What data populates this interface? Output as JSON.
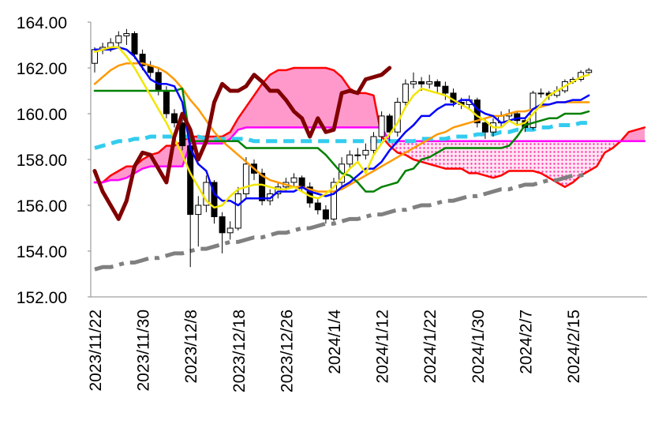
{
  "chart_data": {
    "type": "candlestick",
    "categories": [
      "2023/11/22",
      null,
      null,
      null,
      null,
      null,
      "2023/11/30",
      null,
      null,
      null,
      null,
      null,
      "2023/12/8",
      null,
      null,
      null,
      null,
      null,
      "2023/12/18",
      null,
      null,
      null,
      null,
      null,
      "2023/12/26",
      null,
      null,
      null,
      null,
      null,
      "2024/1/4",
      null,
      null,
      null,
      null,
      null,
      "2024/1/12",
      null,
      null,
      null,
      null,
      null,
      "2024/1/22",
      null,
      null,
      null,
      null,
      null,
      "2024/1/30",
      null,
      null,
      null,
      null,
      null,
      "2024/2/7",
      null,
      null,
      null,
      null,
      null,
      "2024/2/15",
      null,
      null,
      null,
      null,
      null,
      null,
      null,
      null,
      null
    ],
    "ylim": [
      152,
      164
    ],
    "yticks": [
      {
        "value": 152,
        "label": "152.00"
      },
      {
        "value": 154,
        "label": "154.00"
      },
      {
        "value": 156,
        "label": "156.00"
      },
      {
        "value": 158,
        "label": "158.00"
      },
      {
        "value": 160,
        "label": "160.00"
      },
      {
        "value": 162,
        "label": "162.00"
      },
      {
        "value": 164,
        "label": "164.00"
      }
    ],
    "cloud_color": "#ff99cc",
    "candles": {
      "open": [
        162.2,
        162.8,
        162.9,
        163.1,
        163.4,
        163.5,
        162.6,
        162.1,
        161.8,
        161.0,
        160.0,
        159.6,
        158.6,
        155.6,
        156.0,
        157.0,
        155.5,
        154.8,
        155.0,
        156.5,
        157.8,
        157.4,
        156.2,
        156.5,
        156.8,
        157.0,
        157.2,
        156.8,
        156.1,
        155.8,
        155.4,
        157.0,
        157.8,
        158.2,
        158.2,
        158.4,
        159.0,
        159.9,
        159.2,
        160.5,
        161.3,
        161.4,
        161.3,
        161.4,
        161.2,
        160.9,
        160.5,
        160.4,
        160.6,
        159.6,
        159.2,
        159.6,
        159.9,
        160.0,
        159.7,
        159.4,
        160.9,
        160.9,
        160.8,
        161.0,
        161.4,
        161.5,
        161.8,
        null,
        null,
        null,
        null,
        null,
        null,
        null
      ],
      "high": [
        162.9,
        163.1,
        163.3,
        163.6,
        163.7,
        163.6,
        162.8,
        162.3,
        162.0,
        161.2,
        160.2,
        159.8,
        158.8,
        156.4,
        157.3,
        157.1,
        155.7,
        155.3,
        156.8,
        158.1,
        158.0,
        157.6,
        156.7,
        157.0,
        157.2,
        157.4,
        157.3,
        157.0,
        156.3,
        156.0,
        157.2,
        158.1,
        158.4,
        158.5,
        158.7,
        159.2,
        160.1,
        160.0,
        160.7,
        161.5,
        161.8,
        161.6,
        161.7,
        161.5,
        161.4,
        161.1,
        160.7,
        160.8,
        160.7,
        159.8,
        159.8,
        160.1,
        160.2,
        160.1,
        159.8,
        161.0,
        161.1,
        161.0,
        161.2,
        161.5,
        161.6,
        161.9,
        162.0,
        null,
        null,
        null,
        null,
        null,
        null,
        null
      ],
      "low": [
        161.8,
        162.6,
        162.7,
        162.9,
        163.0,
        162.4,
        161.9,
        161.6,
        160.8,
        159.8,
        159.4,
        158.4,
        153.3,
        154.2,
        155.7,
        155.2,
        153.9,
        154.5,
        154.9,
        156.3,
        157.1,
        156.0,
        156.0,
        156.3,
        156.6,
        156.8,
        156.6,
        155.9,
        155.6,
        155.2,
        155.3,
        156.8,
        157.6,
        157.9,
        158.0,
        158.2,
        158.8,
        158.8,
        159.0,
        160.3,
        161.1,
        161.0,
        161.1,
        160.9,
        160.6,
        160.3,
        160.2,
        160.2,
        159.4,
        158.9,
        159.0,
        159.4,
        159.7,
        159.5,
        159.2,
        159.3,
        160.7,
        160.6,
        160.7,
        160.9,
        161.3,
        161.4,
        161.7,
        null,
        null,
        null,
        null,
        null,
        null,
        null
      ],
      "close": [
        162.8,
        162.9,
        163.1,
        163.4,
        163.5,
        162.6,
        162.1,
        161.8,
        161.0,
        160.0,
        159.6,
        158.6,
        155.6,
        156.0,
        157.0,
        155.5,
        154.8,
        155.0,
        156.5,
        157.8,
        157.4,
        156.2,
        156.5,
        156.8,
        157.0,
        157.2,
        156.8,
        156.1,
        155.8,
        155.4,
        157.0,
        157.8,
        158.2,
        158.2,
        158.4,
        159.0,
        159.9,
        159.2,
        160.5,
        161.3,
        161.4,
        161.3,
        161.4,
        161.2,
        160.9,
        160.5,
        160.4,
        160.6,
        159.6,
        159.2,
        159.6,
        159.9,
        160.0,
        159.7,
        159.4,
        160.9,
        160.9,
        160.8,
        161.0,
        161.4,
        161.5,
        161.8,
        161.9,
        null,
        null,
        null,
        null,
        null,
        null,
        null
      ]
    },
    "series": [
      {
        "color": "#ff0000",
        "width": 2.5,
        "values": [
          157.0,
          157.0,
          157.3,
          157.5,
          157.7,
          157.7,
          158.0,
          158.2,
          158.3,
          158.6,
          158.6,
          158.8,
          159.0,
          159.0,
          159.0,
          159.0,
          159.0,
          159.2,
          159.8,
          160.3,
          160.8,
          161.3,
          161.7,
          161.9,
          161.9,
          162.0,
          162.0,
          162.0,
          162.0,
          162.0,
          161.9,
          161.6,
          161.1,
          160.9,
          160.9,
          160.8,
          159.0,
          158.6,
          158.3,
          158.2,
          158.0,
          157.9,
          157.8,
          157.7,
          157.6,
          157.6,
          157.6,
          157.4,
          157.4,
          157.3,
          157.2,
          157.3,
          157.5,
          157.5,
          157.5,
          157.5,
          157.4,
          157.2,
          157.0,
          156.8,
          157.0,
          157.3,
          157.5,
          157.7,
          158.3,
          158.5,
          158.8,
          159.2,
          159.3,
          159.4
        ]
      },
      {
        "color": "#ff00ff",
        "width": 2.5,
        "values": [
          157.0,
          157.0,
          157.1,
          157.1,
          157.2,
          157.4,
          157.6,
          157.7,
          157.7,
          157.7,
          157.7,
          157.7,
          158.7,
          158.7,
          158.7,
          158.7,
          158.7,
          158.9,
          159.3,
          159.4,
          159.4,
          159.4,
          159.4,
          159.4,
          159.4,
          159.4,
          159.4,
          159.4,
          159.4,
          159.4,
          159.4,
          159.4,
          159.4,
          159.4,
          159.4,
          159.4,
          159.4,
          158.8,
          158.8,
          158.8,
          158.8,
          158.8,
          158.8,
          158.8,
          158.8,
          158.8,
          158.8,
          158.8,
          158.8,
          158.8,
          158.8,
          158.8,
          158.8,
          158.8,
          158.8,
          158.8,
          158.8,
          158.8,
          158.8,
          158.8,
          158.8,
          158.8,
          158.8,
          158.8,
          158.8,
          158.8,
          158.8,
          158.8,
          158.8,
          158.8
        ]
      },
      {
        "color": "#808080",
        "width": 5,
        "dash": "24 8 6 8",
        "values": [
          153.2,
          153.3,
          153.3,
          153.4,
          153.5,
          153.5,
          153.6,
          153.7,
          153.7,
          153.8,
          153.9,
          153.9,
          154.0,
          154.1,
          154.1,
          154.2,
          154.3,
          154.4,
          154.4,
          154.5,
          154.6,
          154.6,
          154.7,
          154.8,
          154.8,
          154.9,
          155.0,
          155.0,
          155.1,
          155.2,
          155.2,
          155.3,
          155.4,
          155.4,
          155.5,
          155.6,
          155.6,
          155.7,
          155.8,
          155.8,
          155.9,
          156.0,
          156.0,
          156.1,
          156.2,
          156.2,
          156.3,
          156.4,
          156.4,
          156.5,
          156.6,
          156.7,
          156.7,
          156.8,
          156.9,
          156.9,
          157.0,
          157.1,
          157.1,
          157.2,
          157.3,
          157.3,
          157.4,
          null,
          null,
          null,
          null,
          null,
          null,
          null
        ]
      },
      {
        "color": "#33ccee",
        "width": 5,
        "dash": "14 8",
        "values": [
          158.5,
          158.6,
          158.7,
          158.8,
          158.8,
          158.9,
          158.9,
          159.0,
          159.0,
          159.0,
          159.0,
          159.0,
          159.0,
          159.0,
          158.9,
          158.9,
          158.9,
          158.9,
          158.9,
          158.9,
          158.8,
          158.8,
          158.8,
          158.8,
          158.8,
          158.8,
          158.8,
          158.8,
          158.8,
          158.8,
          158.8,
          158.8,
          158.8,
          158.8,
          158.8,
          158.8,
          158.8,
          158.8,
          158.8,
          158.8,
          158.8,
          158.9,
          158.9,
          158.9,
          158.9,
          159.0,
          159.0,
          159.0,
          159.1,
          159.1,
          159.1,
          159.2,
          159.2,
          159.3,
          159.3,
          159.3,
          159.4,
          159.4,
          159.5,
          159.5,
          159.5,
          159.6,
          159.6,
          null,
          null,
          null,
          null,
          null,
          null,
          null
        ]
      },
      {
        "color": "#ff9900",
        "width": 2.5,
        "values": [
          161.3,
          161.6,
          161.9,
          162.1,
          162.2,
          162.2,
          162.2,
          162.1,
          162.0,
          161.8,
          161.5,
          161.1,
          160.6,
          160.2,
          159.7,
          159.2,
          158.8,
          158.5,
          158.2,
          157.9,
          157.6,
          157.3,
          157.1,
          157.0,
          156.9,
          156.8,
          156.8,
          156.7,
          156.6,
          156.6,
          156.6,
          156.7,
          156.9,
          157.1,
          157.3,
          157.5,
          157.7,
          157.9,
          158.1,
          158.3,
          158.5,
          158.7,
          158.9,
          159.1,
          159.2,
          159.4,
          159.5,
          159.6,
          159.7,
          159.8,
          159.9,
          159.9,
          160.0,
          160.1,
          160.1,
          160.2,
          160.3,
          160.4,
          160.5,
          160.5,
          160.5,
          160.5,
          160.5,
          null,
          null,
          null,
          null,
          null,
          null,
          null
        ]
      },
      {
        "color": "#008000",
        "width": 2.5,
        "values": [
          161.0,
          161.0,
          161.0,
          161.0,
          161.0,
          161.0,
          161.0,
          161.0,
          161.0,
          161.0,
          161.0,
          161.1,
          158.8,
          158.8,
          158.8,
          158.8,
          158.8,
          158.8,
          158.8,
          158.5,
          158.5,
          158.5,
          158.5,
          158.5,
          158.5,
          158.5,
          158.5,
          158.5,
          158.5,
          158.2,
          157.8,
          157.4,
          157.3,
          157.0,
          156.6,
          156.6,
          156.8,
          156.9,
          157.0,
          157.5,
          157.6,
          158.0,
          158.1,
          158.3,
          158.5,
          158.5,
          158.5,
          158.5,
          158.5,
          158.5,
          158.5,
          158.5,
          158.6,
          159.0,
          159.5,
          159.6,
          159.7,
          159.8,
          159.8,
          160.0,
          160.0,
          160.0,
          160.1,
          null,
          null,
          null,
          null,
          null,
          null,
          null
        ]
      },
      {
        "color": "#0000ff",
        "width": 2.5,
        "values": [
          162.8,
          162.8,
          162.8,
          162.9,
          162.8,
          162.5,
          162.0,
          161.5,
          161.3,
          161.3,
          161.2,
          160.5,
          158.5,
          157.8,
          157.5,
          156.5,
          156.2,
          156.2,
          156.0,
          156.3,
          156.3,
          156.3,
          156.3,
          156.6,
          156.6,
          156.6,
          156.8,
          156.6,
          156.5,
          156.4,
          156.5,
          156.8,
          157.0,
          157.3,
          157.6,
          157.6,
          157.9,
          158.4,
          158.8,
          159.2,
          159.5,
          159.9,
          159.9,
          160.2,
          160.4,
          160.4,
          160.6,
          160.6,
          160.2,
          160.0,
          159.9,
          159.6,
          159.7,
          159.8,
          159.8,
          160.2,
          160.4,
          160.4,
          160.5,
          160.5,
          160.6,
          160.6,
          160.8,
          null,
          null,
          null,
          null,
          null,
          null,
          null
        ]
      },
      {
        "color": "#f2e600",
        "width": 2.5,
        "values": [
          162.7,
          162.8,
          162.9,
          162.9,
          162.5,
          162.0,
          161.4,
          160.8,
          160.2,
          159.6,
          158.9,
          158.2,
          157.4,
          156.8,
          156.2,
          155.9,
          156.0,
          156.4,
          156.7,
          156.8,
          156.9,
          156.9,
          156.8,
          156.7,
          156.7,
          156.8,
          156.6,
          156.4,
          156.3,
          156.5,
          156.8,
          157.2,
          157.6,
          157.9,
          157.4,
          158.2,
          158.7,
          159.1,
          159.6,
          160.3,
          160.8,
          161.1,
          161.0,
          160.9,
          160.8,
          160.6,
          160.4,
          160.2,
          159.9,
          159.7,
          159.4,
          159.4,
          159.7,
          159.5,
          159.6,
          160.0,
          160.4,
          160.8,
          161.0,
          161.2,
          161.4,
          161.6,
          161.7,
          null,
          null,
          null,
          null,
          null,
          null,
          null
        ]
      },
      {
        "color": "#800000",
        "width": 5,
        "values": [
          157.5,
          156.6,
          156.0,
          155.4,
          156.2,
          157.7,
          158.3,
          158.2,
          157.6,
          157.0,
          159.0,
          160.0,
          159.3,
          158.0,
          158.8,
          160.5,
          161.3,
          161.0,
          161.0,
          161.2,
          161.7,
          161.4,
          161.0,
          161.0,
          160.6,
          160.1,
          159.8,
          159.0,
          159.8,
          159.2,
          159.3,
          160.9,
          161.0,
          160.9,
          161.5,
          161.6,
          161.7,
          162.0,
          null,
          null,
          null,
          null,
          null,
          null,
          null,
          null,
          null,
          null,
          null,
          null,
          null,
          null,
          null,
          null,
          null,
          null,
          null,
          null,
          null,
          null,
          null,
          null,
          null,
          null,
          null,
          null,
          null,
          null,
          null,
          null
        ]
      }
    ]
  }
}
